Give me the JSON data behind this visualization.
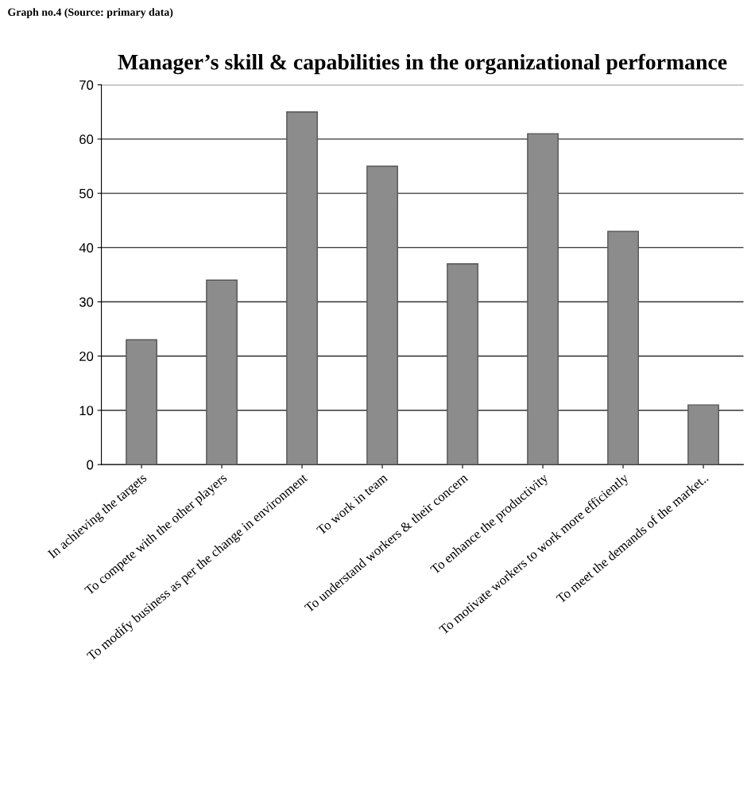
{
  "chart_data": {
    "type": "bar",
    "title": "Manager’s skill & capabilities in the organizational performance",
    "annotations": [
      "Graph no.4 (Source: primary data)"
    ],
    "categories": [
      "In achieving the targets",
      "To compete with the other players",
      "To modify business as per the change in environment",
      "To work in team",
      "To understand workers & their concern",
      "To enhance the productivity",
      "To motivate workers to work more efficiently",
      "To meet the demands of the market.."
    ],
    "values": [
      23,
      34,
      65,
      55,
      37,
      61,
      43,
      11
    ],
    "color": "#8c8c8c",
    "ylim": [
      0,
      70
    ],
    "yticks": [
      0,
      10,
      20,
      30,
      40,
      50,
      60,
      70
    ],
    "grid": "y"
  }
}
